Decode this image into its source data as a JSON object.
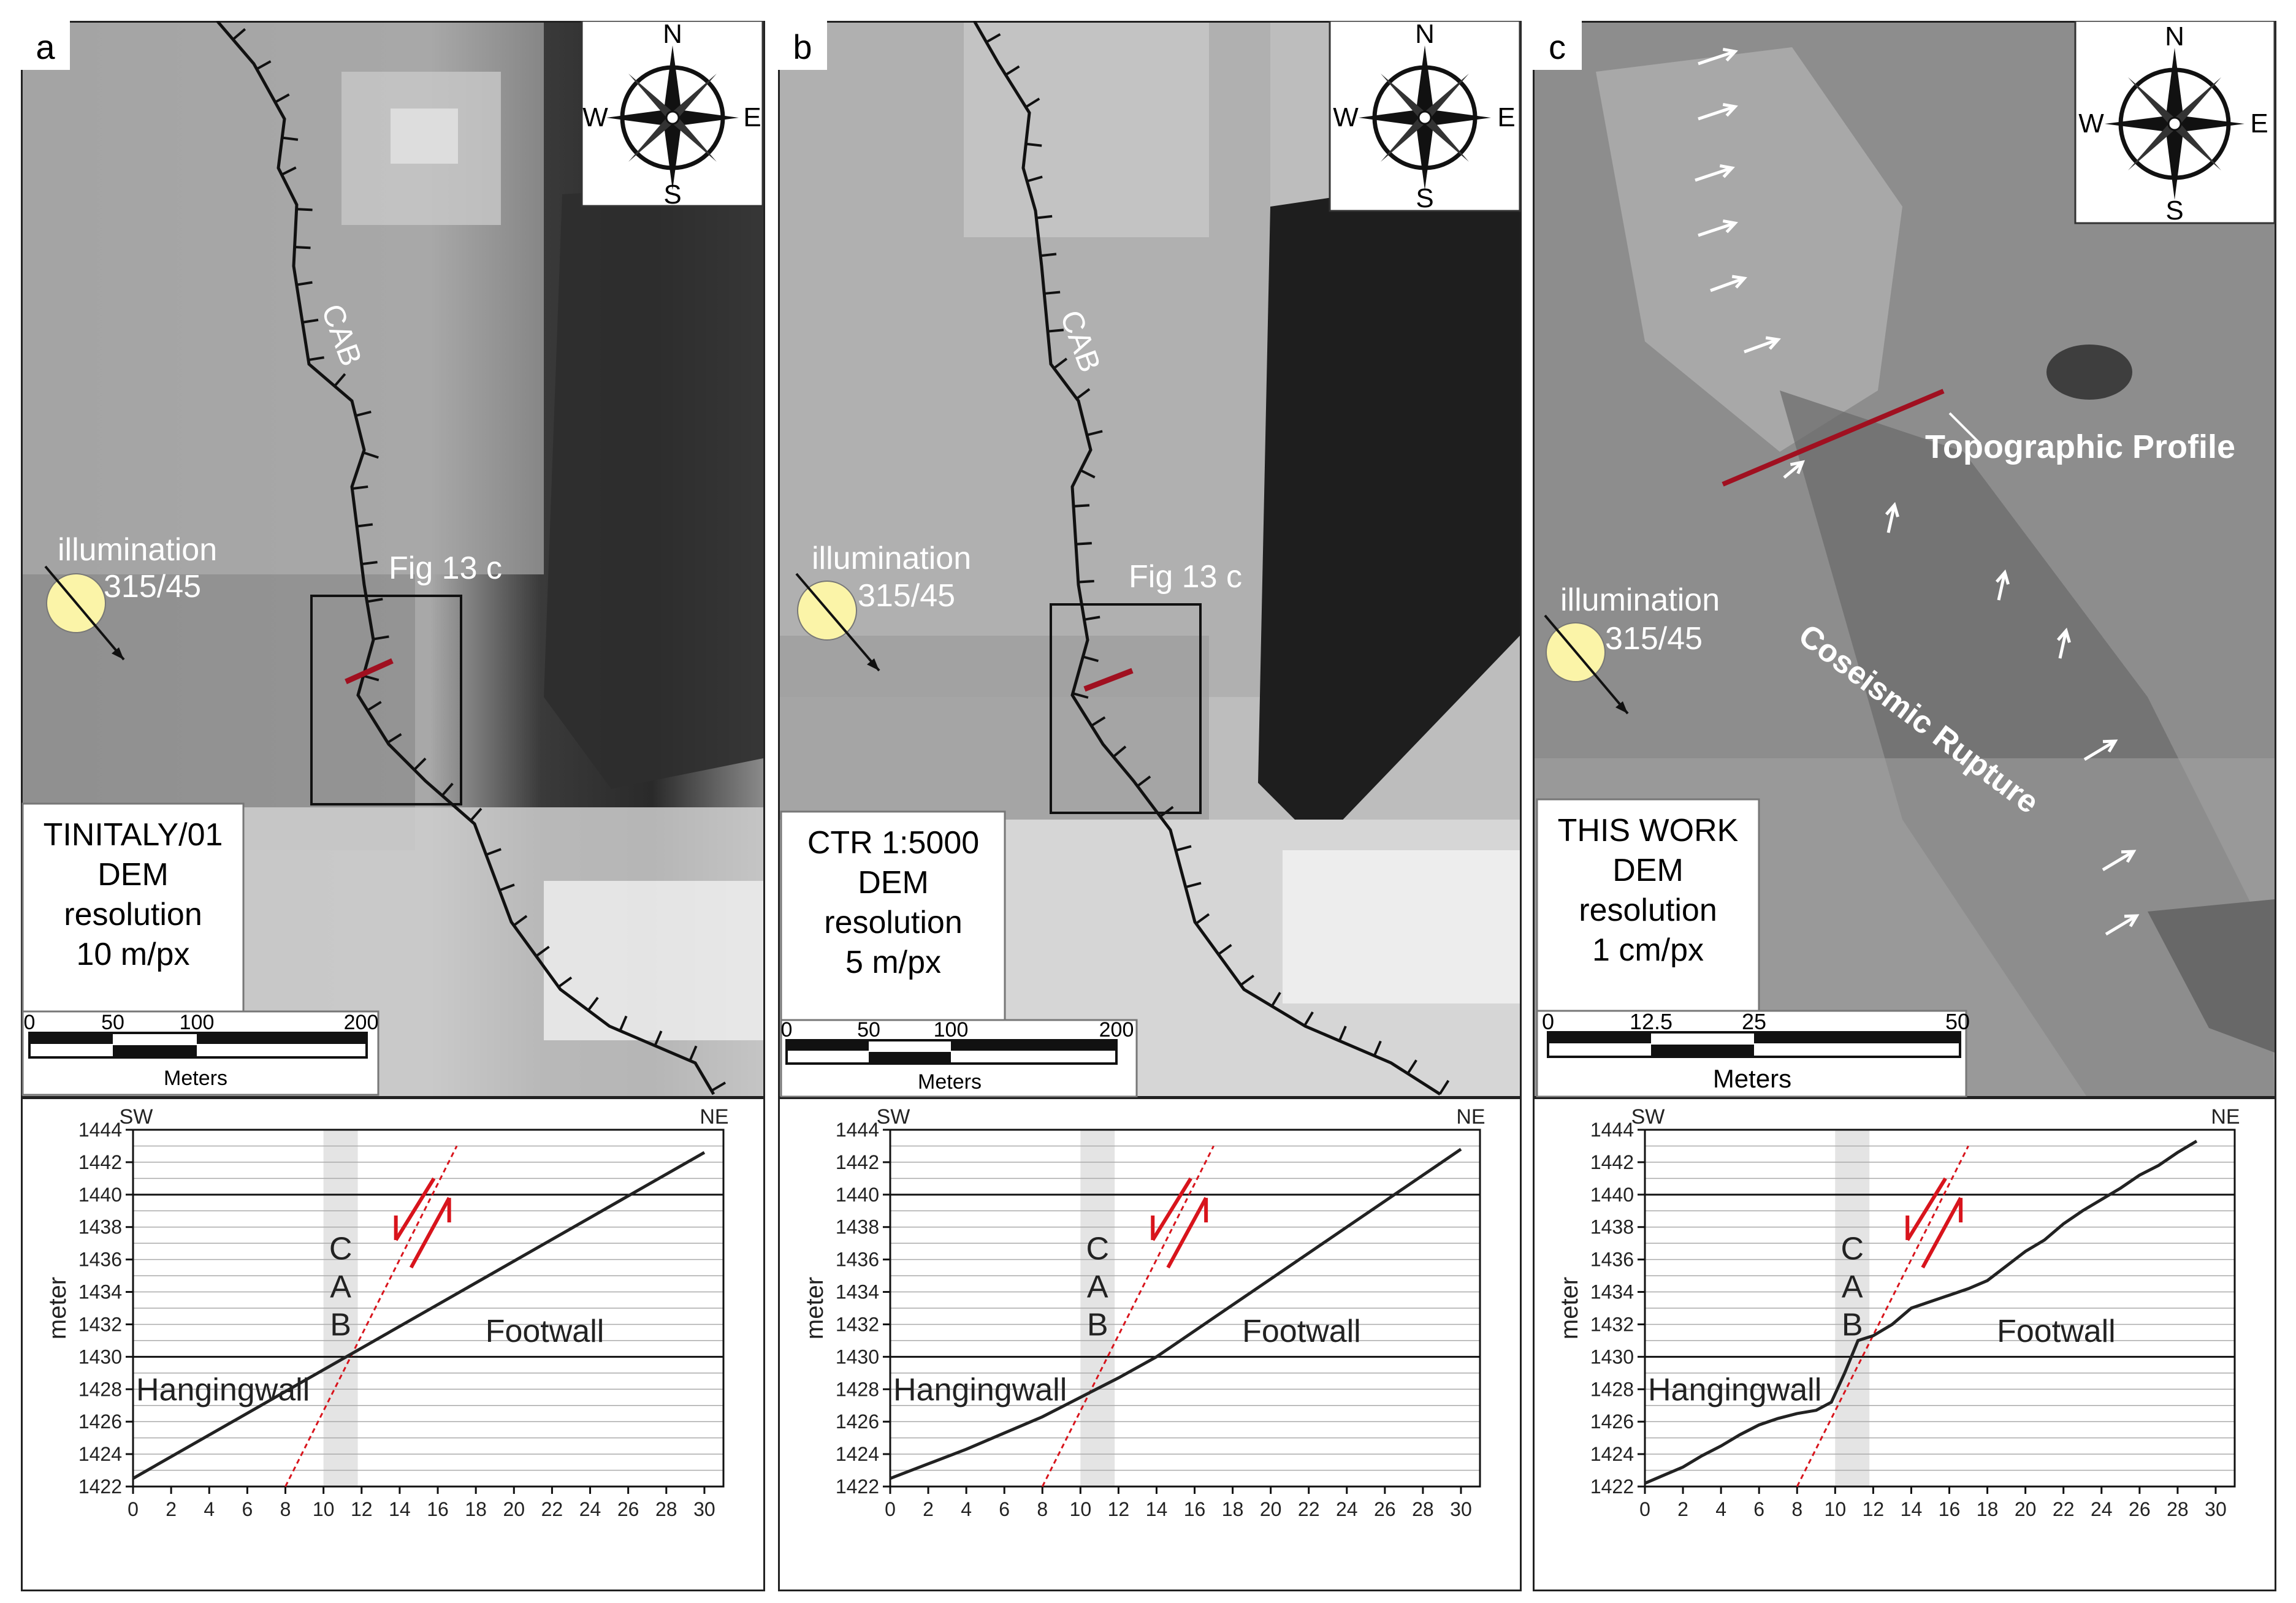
{
  "panels": [
    {
      "letter": "a",
      "dem_source": "TINITALY/01",
      "dem_label": "DEM",
      "res_label": "resolution",
      "res_value": "10 m/px",
      "scale_ticks": [
        "0",
        "50",
        "100",
        "200"
      ],
      "scale_unit": "Meters",
      "illumination": "illumination",
      "illumination_angle": "315/45",
      "fault_label": "CAB",
      "box_label": "Fig 13 c",
      "compass": {
        "n": "N",
        "s": "S",
        "e": "E",
        "w": "W"
      }
    },
    {
      "letter": "b",
      "dem_source": "CTR 1:5000",
      "dem_label": "DEM",
      "res_label": "resolution",
      "res_value": "5 m/px",
      "scale_ticks": [
        "0",
        "50",
        "100",
        "200"
      ],
      "scale_unit": "Meters",
      "illumination": "illumination",
      "illumination_angle": "315/45",
      "fault_label": "CAB",
      "box_label": "Fig 13 c",
      "compass": {
        "n": "N",
        "s": "S",
        "e": "E",
        "w": "W"
      }
    },
    {
      "letter": "c",
      "dem_source": "THIS WORK",
      "dem_label": "DEM",
      "res_label": "resolution",
      "res_value": "1 cm/px",
      "scale_ticks": [
        "0",
        "12.5",
        "25",
        "50"
      ],
      "scale_unit": "Meters",
      "illumination": "illumination",
      "illumination_angle": "315/45",
      "profile_label": "Topographic Profile",
      "rupture_label": "Coseismic Rupture",
      "compass": {
        "n": "N",
        "s": "S",
        "e": "E",
        "w": "W"
      }
    }
  ],
  "chart_data": [
    {
      "type": "line",
      "panel": "a",
      "ylabel": "meter",
      "left_label": "SW",
      "right_label": "NE",
      "xlim": [
        0,
        31
      ],
      "ylim": [
        1422,
        1444
      ],
      "x_ticks": [
        0,
        2,
        4,
        6,
        8,
        10,
        12,
        14,
        16,
        18,
        20,
        22,
        24,
        26,
        28,
        30
      ],
      "y_ticks": [
        1422,
        1424,
        1426,
        1428,
        1430,
        1432,
        1434,
        1436,
        1438,
        1440,
        1442,
        1444
      ],
      "cab_label": [
        "C",
        "A",
        "B"
      ],
      "cab_band": [
        10,
        11.8
      ],
      "fault_line": {
        "x": [
          8,
          17
        ],
        "y": [
          1422,
          1443
        ]
      },
      "hangingwall_label": "Hangingwall",
      "footwall_label": "Footwall",
      "series": [
        {
          "x": [
            0,
            30
          ],
          "y": [
            1422.5,
            1442.6
          ]
        }
      ]
    },
    {
      "type": "line",
      "panel": "b",
      "ylabel": "meter",
      "left_label": "SW",
      "right_label": "NE",
      "xlim": [
        0,
        31
      ],
      "ylim": [
        1422,
        1444
      ],
      "x_ticks": [
        0,
        2,
        4,
        6,
        8,
        10,
        12,
        14,
        16,
        18,
        20,
        22,
        24,
        26,
        28,
        30
      ],
      "y_ticks": [
        1422,
        1424,
        1426,
        1428,
        1430,
        1432,
        1434,
        1436,
        1438,
        1440,
        1442,
        1444
      ],
      "cab_label": [
        "C",
        "A",
        "B"
      ],
      "cab_band": [
        10,
        11.8
      ],
      "fault_line": {
        "x": [
          8,
          17
        ],
        "y": [
          1422,
          1443
        ]
      },
      "hangingwall_label": "Hangingwall",
      "footwall_label": "Footwall",
      "series": [
        {
          "x": [
            0,
            2,
            4,
            6,
            8,
            10,
            12,
            14,
            16,
            18,
            20,
            22,
            24,
            26,
            28,
            30
          ],
          "y": [
            1422.5,
            1423.4,
            1424.3,
            1425.3,
            1426.3,
            1427.5,
            1428.7,
            1430.0,
            1431.6,
            1433.2,
            1434.8,
            1436.4,
            1438.0,
            1439.6,
            1441.2,
            1442.8
          ]
        }
      ]
    },
    {
      "type": "line",
      "panel": "c",
      "ylabel": "meter",
      "left_label": "SW",
      "right_label": "NE",
      "xlim": [
        0,
        31
      ],
      "ylim": [
        1422,
        1444
      ],
      "x_ticks": [
        0,
        2,
        4,
        6,
        8,
        10,
        12,
        14,
        16,
        18,
        20,
        22,
        24,
        26,
        28,
        30
      ],
      "y_ticks": [
        1422,
        1424,
        1426,
        1428,
        1430,
        1432,
        1434,
        1436,
        1438,
        1440,
        1442,
        1444
      ],
      "cab_label": [
        "C",
        "A",
        "B"
      ],
      "cab_band": [
        10,
        11.8
      ],
      "fault_line": {
        "x": [
          8,
          17
        ],
        "y": [
          1422,
          1443
        ]
      },
      "hangingwall_label": "Hangingwall",
      "footwall_label": "Footwall",
      "series": [
        {
          "x": [
            0,
            1,
            2,
            3,
            4,
            5,
            6,
            7,
            8,
            9,
            9.8,
            10.5,
            11.2,
            12,
            13,
            14,
            15,
            16,
            17,
            18,
            19,
            20,
            21,
            22,
            23,
            24,
            25,
            26,
            27,
            28,
            29
          ],
          "y": [
            1422.2,
            1422.7,
            1423.2,
            1423.9,
            1424.5,
            1425.2,
            1425.8,
            1426.2,
            1426.5,
            1426.7,
            1427.2,
            1429.0,
            1431.0,
            1431.3,
            1432.0,
            1433.0,
            1433.4,
            1433.8,
            1434.2,
            1434.7,
            1435.6,
            1436.5,
            1437.2,
            1438.2,
            1439.0,
            1439.7,
            1440.4,
            1441.2,
            1441.8,
            1442.6,
            1443.3
          ]
        }
      ]
    }
  ],
  "colors": {
    "fault_red": "#d8141c",
    "sun": "#fbf4a8",
    "cab_band": "#e4e4e4"
  }
}
